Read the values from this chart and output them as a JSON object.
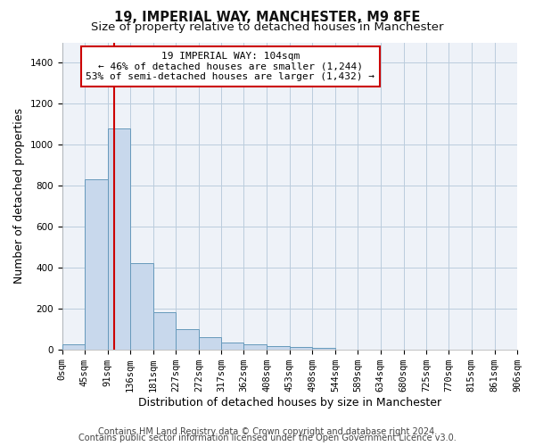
{
  "title": "19, IMPERIAL WAY, MANCHESTER, M9 8FE",
  "subtitle": "Size of property relative to detached houses in Manchester",
  "xlabel": "Distribution of detached houses by size in Manchester",
  "ylabel": "Number of detached properties",
  "footer_line1": "Contains HM Land Registry data © Crown copyright and database right 2024.",
  "footer_line2": "Contains public sector information licensed under the Open Government Licence v3.0.",
  "bar_color": "#c8d8ec",
  "bar_edge_color": "#6699bb",
  "figure_bg_color": "#ffffff",
  "axes_bg_color": "#eef2f8",
  "vline_color": "#cc0000",
  "vline_x": 104,
  "annotation_title": "19 IMPERIAL WAY: 104sqm",
  "annotation_line2": "← 46% of detached houses are smaller (1,244)",
  "annotation_line3": "53% of semi-detached houses are larger (1,432) →",
  "bin_edges": [
    0,
    45,
    91,
    136,
    181,
    227,
    272,
    317,
    362,
    408,
    453,
    498,
    544,
    589,
    634,
    680,
    725,
    770,
    815,
    861,
    906
  ],
  "bin_counts": [
    25,
    830,
    1080,
    420,
    182,
    100,
    58,
    35,
    25,
    15,
    10,
    8,
    0,
    0,
    0,
    0,
    0,
    0,
    0,
    0
  ],
  "ylim": [
    0,
    1500
  ],
  "yticks": [
    0,
    200,
    400,
    600,
    800,
    1000,
    1200,
    1400
  ],
  "xtick_labels": [
    "0sqm",
    "45sqm",
    "91sqm",
    "136sqm",
    "181sqm",
    "227sqm",
    "272sqm",
    "317sqm",
    "362sqm",
    "408sqm",
    "453sqm",
    "498sqm",
    "544sqm",
    "589sqm",
    "634sqm",
    "680sqm",
    "725sqm",
    "770sqm",
    "815sqm",
    "861sqm",
    "906sqm"
  ],
  "grid_color": "#bbccdd",
  "title_fontsize": 10.5,
  "subtitle_fontsize": 9.5,
  "axis_label_fontsize": 9,
  "tick_fontsize": 7.5,
  "annotation_fontsize": 8,
  "footer_fontsize": 7
}
